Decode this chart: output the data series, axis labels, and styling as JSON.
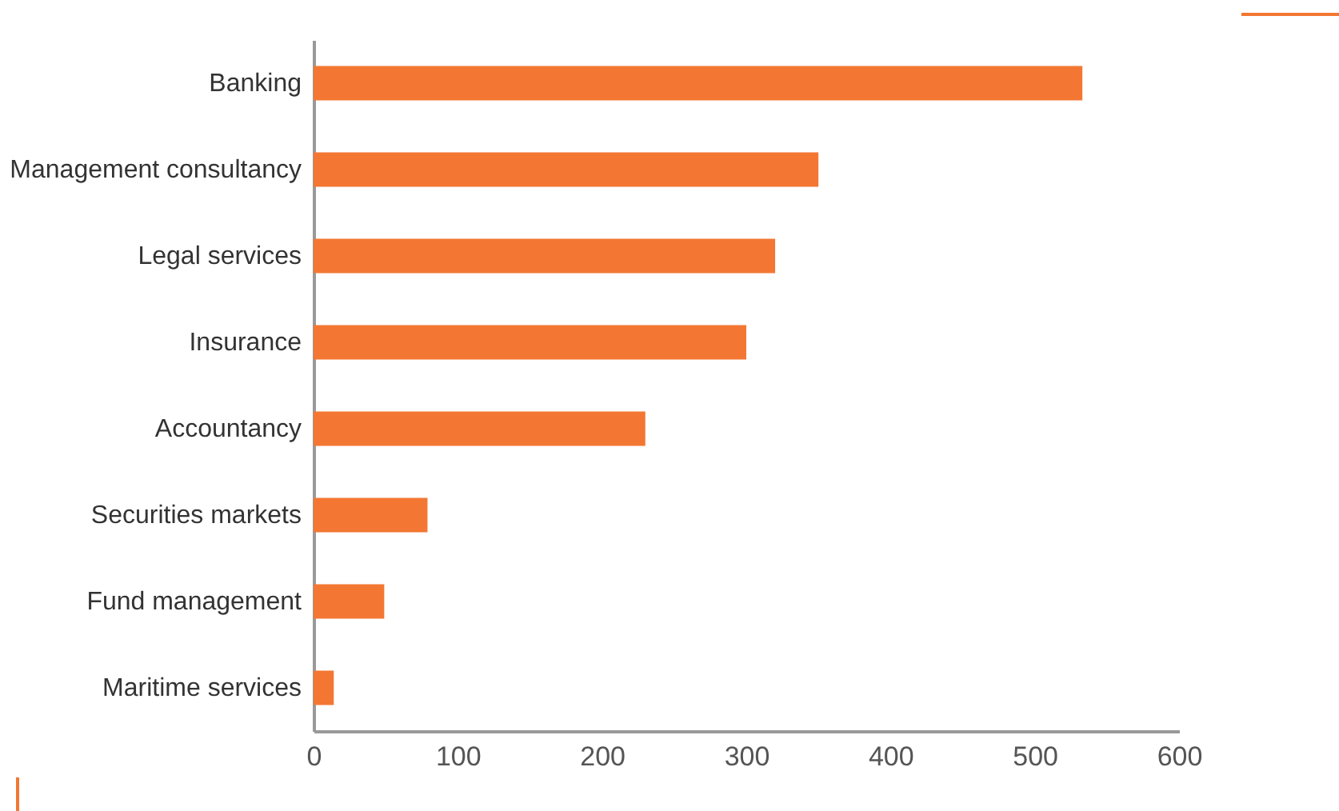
{
  "chart_data": {
    "type": "bar",
    "orientation": "horizontal",
    "categories": [
      "Banking",
      "Management consultancy",
      "Legal services",
      "Insurance",
      "Accountancy",
      "Securities markets",
      "Fund management",
      "Maritime services"
    ],
    "values": [
      533,
      350,
      320,
      300,
      230,
      79,
      49,
      14
    ],
    "color": "#f37732",
    "xlim": [
      0,
      600
    ],
    "xticks": [
      0,
      100,
      200,
      300,
      400,
      500,
      600
    ],
    "grid": false
  }
}
